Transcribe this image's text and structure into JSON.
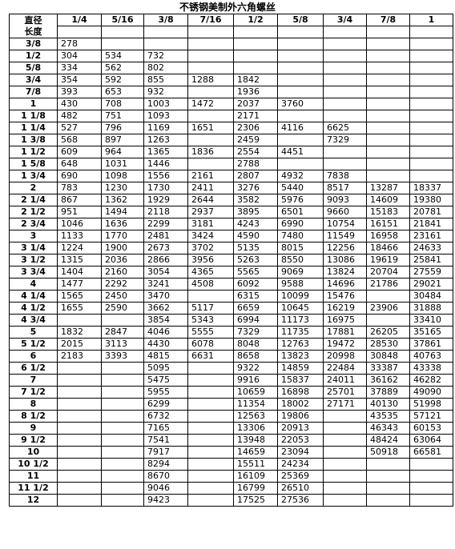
{
  "title": "不锈钢美制外六角螺丝",
  "header": {
    "corner_top": "直径",
    "corner_bottom": "长度",
    "diameters": [
      "1/4",
      "5/16",
      "3/8",
      "7/16",
      "1/2",
      "5/8",
      "3/4",
      "7/8",
      "1"
    ]
  },
  "rows": [
    {
      "length": "3/8",
      "values": [
        "278",
        "",
        "",
        "",
        "",
        "",
        "",
        "",
        ""
      ]
    },
    {
      "length": "1/2",
      "values": [
        "304",
        "534",
        "732",
        "",
        "",
        "",
        "",
        "",
        ""
      ]
    },
    {
      "length": "5/8",
      "values": [
        "334",
        "562",
        "802",
        "",
        "",
        "",
        "",
        "",
        ""
      ]
    },
    {
      "length": "3/4",
      "values": [
        "354",
        "592",
        "855",
        "1288",
        "1842",
        "",
        "",
        "",
        ""
      ]
    },
    {
      "length": "7/8",
      "values": [
        "393",
        "653",
        "932",
        "",
        "1936",
        "",
        "",
        "",
        ""
      ]
    },
    {
      "length": "1",
      "values": [
        "430",
        "708",
        "1003",
        "1472",
        "2037",
        "3760",
        "",
        "",
        ""
      ]
    },
    {
      "length": "1 1/8",
      "values": [
        "482",
        "751",
        "1093",
        "",
        "2171",
        "",
        "",
        "",
        ""
      ]
    },
    {
      "length": "1 1/4",
      "values": [
        "527",
        "796",
        "1169",
        "1651",
        "2306",
        "4116",
        "6625",
        "",
        ""
      ]
    },
    {
      "length": "1 3/8",
      "values": [
        "568",
        "897",
        "1263",
        "",
        "2459",
        "",
        "7329",
        "",
        ""
      ]
    },
    {
      "length": "1 1/2",
      "values": [
        "609",
        "964",
        "1365",
        "1836",
        "2554",
        "4451",
        "",
        "",
        ""
      ]
    },
    {
      "length": "1 5/8",
      "values": [
        "648",
        "1031",
        "1446",
        "",
        "2788",
        "",
        "",
        "",
        ""
      ]
    },
    {
      "length": "1 3/4",
      "values": [
        "690",
        "1098",
        "1556",
        "2161",
        "2807",
        "4932",
        "7838",
        "",
        ""
      ]
    },
    {
      "length": "2",
      "values": [
        "783",
        "1230",
        "1730",
        "2411",
        "3276",
        "5440",
        "8517",
        "13287",
        "18337"
      ]
    },
    {
      "length": "2 1/4",
      "values": [
        "867",
        "1362",
        "1929",
        "2644",
        "3582",
        "5976",
        "9093",
        "14609",
        "19380"
      ]
    },
    {
      "length": "2 1/2",
      "values": [
        "951",
        "1494",
        "2118",
        "2937",
        "3895",
        "6501",
        "9660",
        "15183",
        "20781"
      ]
    },
    {
      "length": "2 3/4",
      "values": [
        "1046",
        "1636",
        "2299",
        "3181",
        "4243",
        "6990",
        "10754",
        "16151",
        "21841"
      ]
    },
    {
      "length": "3",
      "values": [
        "1133",
        "1770",
        "2481",
        "3424",
        "4590",
        "7480",
        "11549",
        "16958",
        "23161"
      ]
    },
    {
      "length": "3 1/4",
      "values": [
        "1224",
        "1900",
        "2673",
        "3702",
        "5135",
        "8015",
        "12256",
        "18466",
        "24633"
      ]
    },
    {
      "length": "3 1/2",
      "values": [
        "1315",
        "2036",
        "2866",
        "3956",
        "5263",
        "8550",
        "13086",
        "19619",
        "25841"
      ]
    },
    {
      "length": "3 3/4",
      "values": [
        "1404",
        "2160",
        "3054",
        "4365",
        "5565",
        "9069",
        "13824",
        "20704",
        "27559"
      ]
    },
    {
      "length": "4",
      "values": [
        "1477",
        "2292",
        "3241",
        "4508",
        "6092",
        "9588",
        "14696",
        "21786",
        "29021"
      ]
    },
    {
      "length": "4 1/4",
      "values": [
        "1565",
        "2450",
        "3470",
        "",
        "6315",
        "10099",
        "15476",
        "",
        "30484"
      ]
    },
    {
      "length": "4 1/2",
      "values": [
        "1655",
        "2590",
        "3662",
        "5117",
        "6659",
        "10645",
        "16219",
        "23906",
        "31888"
      ]
    },
    {
      "length": "4 3/4",
      "values": [
        "",
        "",
        "3854",
        "5343",
        "6994",
        "11173",
        "16975",
        "",
        "33410"
      ]
    },
    {
      "length": "5",
      "values": [
        "1832",
        "2847",
        "4046",
        "5555",
        "7329",
        "11735",
        "17881",
        "26205",
        "35165"
      ]
    },
    {
      "length": "5 1/2",
      "values": [
        "2015",
        "3113",
        "4430",
        "6078",
        "8048",
        "12763",
        "19472",
        "28530",
        "37861"
      ]
    },
    {
      "length": "6",
      "values": [
        "2183",
        "3393",
        "4815",
        "6631",
        "8658",
        "13823",
        "20998",
        "30848",
        "40763"
      ]
    },
    {
      "length": "6 1/2",
      "values": [
        "",
        "",
        "5095",
        "",
        "9322",
        "14859",
        "22484",
        "33387",
        "43338"
      ]
    },
    {
      "length": "7",
      "values": [
        "",
        "",
        "5475",
        "",
        "9916",
        "15837",
        "24011",
        "36162",
        "46282"
      ]
    },
    {
      "length": "7 1/2",
      "values": [
        "",
        "",
        "5955",
        "",
        "10659",
        "16898",
        "25701",
        "37889",
        "49090"
      ]
    },
    {
      "length": "8",
      "values": [
        "",
        "",
        "6299",
        "",
        "11354",
        "18002",
        "27171",
        "40130",
        "51998"
      ]
    },
    {
      "length": "8 1/2",
      "values": [
        "",
        "",
        "6732",
        "",
        "12563",
        "19806",
        "",
        "43535",
        "57121"
      ]
    },
    {
      "length": "9",
      "values": [
        "",
        "",
        "7165",
        "",
        "13306",
        "20913",
        "",
        "46343",
        "60153"
      ]
    },
    {
      "length": "9 1/2",
      "values": [
        "",
        "",
        "7541",
        "",
        "13948",
        "22053",
        "",
        "48424",
        "63064"
      ]
    },
    {
      "length": "10",
      "values": [
        "",
        "",
        "7917",
        "",
        "14659",
        "23094",
        "",
        "50918",
        "66581"
      ]
    },
    {
      "length": "10 1/2",
      "values": [
        "",
        "",
        "8294",
        "",
        "15511",
        "24234",
        "",
        "",
        ""
      ]
    },
    {
      "length": "11",
      "values": [
        "",
        "",
        "8670",
        "",
        "16109",
        "25369",
        "",
        "",
        ""
      ]
    },
    {
      "length": "11 1/2",
      "values": [
        "",
        "",
        "9046",
        "",
        "16799",
        "26510",
        "",
        "",
        ""
      ]
    },
    {
      "length": "12",
      "values": [
        "",
        "",
        "9423",
        "",
        "17525",
        "27536",
        "",
        "",
        ""
      ]
    }
  ]
}
